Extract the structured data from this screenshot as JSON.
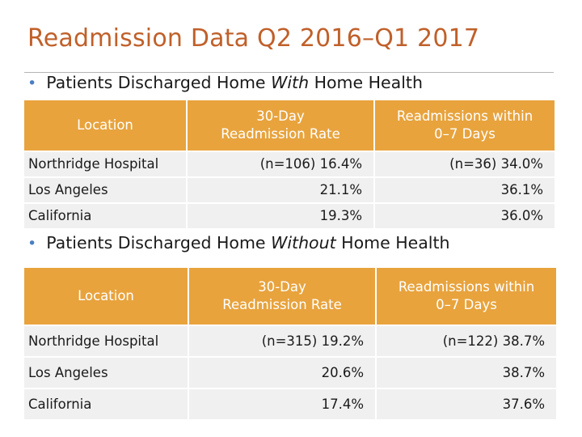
{
  "slide": {
    "title": "Readmission Data Q2 2016–Q1 2017"
  },
  "section_with": {
    "prefix": "Patients Discharged Home ",
    "emphasis": "With",
    "suffix": " Home Health",
    "columns": [
      "Location",
      "30-Day\nReadmission Rate",
      "Readmissions within\n0–7 Days"
    ],
    "rows": [
      {
        "location": "Northridge Hospital",
        "rate_30day": "(n=106) 16.4%",
        "readmit_0_7": "(n=36) 34.0%"
      },
      {
        "location": "Los Angeles",
        "rate_30day": "21.1%",
        "readmit_0_7": "36.1%"
      },
      {
        "location": "California",
        "rate_30day": "19.3%",
        "readmit_0_7": "36.0%"
      }
    ]
  },
  "section_without": {
    "prefix": "Patients Discharged Home ",
    "emphasis": "Without",
    "suffix": " Home Health",
    "columns": [
      "Location",
      "30-Day\nReadmission Rate",
      "Readmissions within\n0–7 Days"
    ],
    "rows": [
      {
        "location": "Northridge Hospital",
        "rate_30day": "(n=315) 19.2%",
        "readmit_0_7": "(n=122) 38.7%"
      },
      {
        "location": "Los Angeles",
        "rate_30day": "20.6%",
        "readmit_0_7": "38.7%"
      },
      {
        "location": "California",
        "rate_30day": "17.4%",
        "readmit_0_7": "37.6%"
      }
    ]
  },
  "colors": {
    "title": "#c0602a",
    "header_fill": "#e8a33d",
    "row_fill": "#f0f0f0",
    "bullet": "#4b7ec2"
  }
}
